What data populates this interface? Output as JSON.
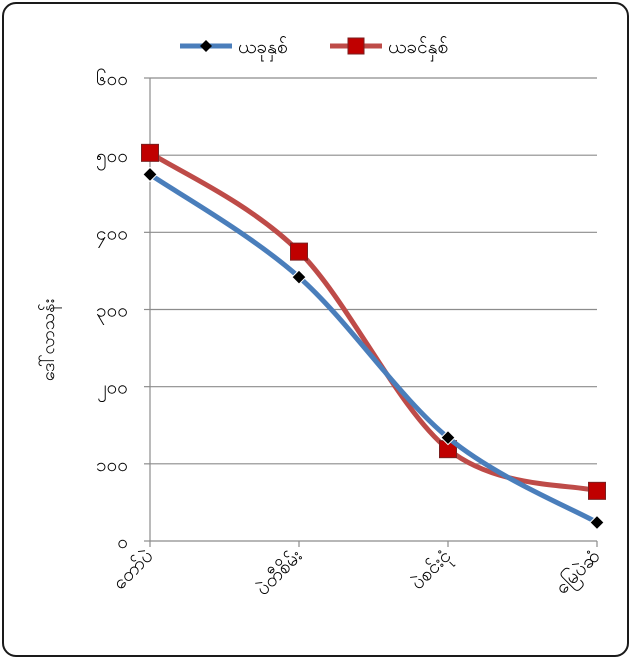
{
  "chart_data": {
    "type": "line",
    "categories": [
      "တော်ပဲ",
      "ပဲတီစိမ်း",
      "ပဲစင်းငုံ",
      "မြေပဲဆံ"
    ],
    "series": [
      {
        "name": "ယခုနှစ်",
        "color": "#4A7EBB",
        "marker": "diamond",
        "values": [
          475,
          342,
          134,
          24
        ]
      },
      {
        "name": "ယခင်နှစ်",
        "color": "#BE4B48",
        "marker": "square",
        "values": [
          503,
          375,
          119,
          65
        ]
      }
    ],
    "ylabel": "ဒေါ်လာသန်း",
    "ylim": [
      0,
      600
    ],
    "yticks": [
      {
        "value": 0,
        "label": "၀"
      },
      {
        "value": 100,
        "label": "၁၀၀"
      },
      {
        "value": 200,
        "label": "၂၀၀"
      },
      {
        "value": 300,
        "label": "၃၀၀"
      },
      {
        "value": 400,
        "label": "၄၀၀"
      },
      {
        "value": 500,
        "label": "၅၀၀"
      },
      {
        "value": 600,
        "label": "၆၀၀"
      }
    ],
    "grid": true,
    "legend": "top"
  }
}
